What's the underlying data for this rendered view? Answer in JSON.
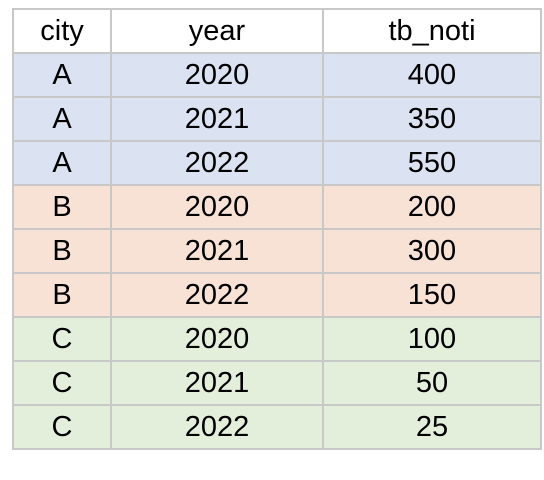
{
  "table": {
    "columns": [
      "city",
      "year",
      "tb_noti"
    ],
    "group_colors": {
      "A": "#dbe2f2",
      "B": "#f8e2d6",
      "C": "#e3efda"
    },
    "rows": [
      {
        "city": "A",
        "year": "2020",
        "tb_noti": "400"
      },
      {
        "city": "A",
        "year": "2021",
        "tb_noti": "350"
      },
      {
        "city": "A",
        "year": "2022",
        "tb_noti": "550"
      },
      {
        "city": "B",
        "year": "2020",
        "tb_noti": "200"
      },
      {
        "city": "B",
        "year": "2021",
        "tb_noti": "300"
      },
      {
        "city": "B",
        "year": "2022",
        "tb_noti": "150"
      },
      {
        "city": "C",
        "year": "2020",
        "tb_noti": "100"
      },
      {
        "city": "C",
        "year": "2021",
        "tb_noti": "50"
      },
      {
        "city": "C",
        "year": "2022",
        "tb_noti": "25"
      }
    ]
  }
}
